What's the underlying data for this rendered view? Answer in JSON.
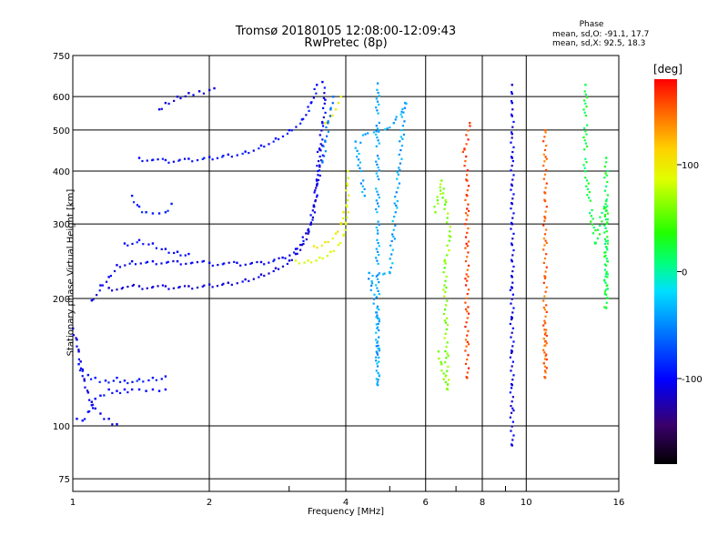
{
  "chart_data": {
    "type": "scatter",
    "title": "Tromsø 20180105 12:08:00-12:09:43",
    "subtitle": "RwPretec (8p)",
    "xlabel": "Frequency [MHz]",
    "ylabel": "Stationary phase Virtual Height [km]",
    "x_scale": "log",
    "y_scale": "log",
    "xlim": [
      1,
      16
    ],
    "ylim": [
      70,
      750
    ],
    "x_ticks": [
      1,
      2,
      4,
      6,
      8,
      10,
      16
    ],
    "y_ticks": [
      75,
      100,
      200,
      300,
      400,
      500,
      600,
      750
    ],
    "grid": true,
    "phase_stats": {
      "title": "Phase",
      "o_mode": "mean, sd,O: -91.1, 17.7",
      "x_mode": "mean, sd,X:  92.5, 18.3"
    },
    "colorbar": {
      "unit": "[deg]",
      "range": [
        -180,
        180
      ],
      "ticks": [
        "100",
        "0",
        "-100"
      ],
      "tick_values": [
        100,
        0,
        -100
      ]
    },
    "series": [
      {
        "traces": [
          {
            "points": [
              [
                1.02,
                104
              ],
              [
                1.05,
                103
              ],
              [
                1.08,
                108
              ],
              [
                1.1,
                112
              ],
              [
                1.12,
                116
              ],
              [
                1.15,
                118
              ],
              [
                1.2,
                122
              ],
              [
                1.25,
                121
              ],
              [
                1.3,
                122
              ],
              [
                1.35,
                122
              ],
              [
                1.4,
                122
              ],
              [
                1.45,
                121
              ],
              [
                1.5,
                122
              ],
              [
                1.55,
                121
              ],
              [
                1.6,
                122
              ]
            ],
            "phase": -100
          },
          {
            "points": [
              [
                1.03,
                140
              ],
              [
                1.05,
                135
              ],
              [
                1.08,
                132
              ],
              [
                1.12,
                130
              ],
              [
                1.18,
                128
              ],
              [
                1.25,
                130
              ],
              [
                1.3,
                128
              ],
              [
                1.4,
                129
              ],
              [
                1.5,
                130
              ],
              [
                1.6,
                131
              ]
            ],
            "phase": -95
          },
          {
            "points": [
              [
                1.0,
                170
              ],
              [
                1.02,
                160
              ],
              [
                1.03,
                150
              ],
              [
                1.04,
                142
              ],
              [
                1.05,
                136
              ],
              [
                1.06,
                128
              ],
              [
                1.08,
                120
              ],
              [
                1.1,
                114
              ],
              [
                1.12,
                110
              ],
              [
                1.15,
                107
              ],
              [
                1.2,
                104
              ],
              [
                1.25,
                101
              ]
            ],
            "phase": -110
          },
          {
            "points": [
              [
                1.1,
                198
              ],
              [
                1.15,
                215
              ],
              [
                1.2,
                225
              ],
              [
                1.25,
                240
              ],
              [
                1.35,
                245
              ],
              [
                1.5,
                245
              ],
              [
                1.7,
                245
              ],
              [
                2.0,
                243
              ],
              [
                2.3,
                243
              ],
              [
                2.6,
                244
              ],
              [
                2.9,
                250
              ],
              [
                3.1,
                262
              ],
              [
                3.3,
                290
              ],
              [
                3.4,
                330
              ],
              [
                3.45,
                380
              ],
              [
                3.5,
                450
              ],
              [
                3.55,
                520
              ],
              [
                3.6,
                590
              ],
              [
                3.55,
                650
              ]
            ],
            "phase": -105
          },
          {
            "points": [
              [
                1.2,
                212
              ],
              [
                1.4,
                214
              ],
              [
                1.6,
                214
              ],
              [
                1.8,
                214
              ],
              [
                2.0,
                216
              ],
              [
                2.2,
                218
              ],
              [
                2.4,
                222
              ],
              [
                2.6,
                228
              ],
              [
                2.8,
                236
              ],
              [
                3.0,
                246
              ],
              [
                3.1,
                255
              ],
              [
                3.2,
                268
              ],
              [
                3.3,
                285
              ],
              [
                3.35,
                300
              ],
              [
                3.4,
                330
              ],
              [
                3.45,
                370
              ],
              [
                3.5,
                410
              ],
              [
                3.55,
                460
              ]
            ],
            "phase": -115
          },
          {
            "points": [
              [
                1.4,
                430
              ],
              [
                1.6,
                425
              ],
              [
                1.8,
                428
              ],
              [
                2.0,
                432
              ],
              [
                2.2,
                438
              ],
              [
                2.4,
                445
              ],
              [
                2.6,
                460
              ],
              [
                2.8,
                478
              ],
              [
                3.0,
                500
              ],
              [
                3.2,
                530
              ],
              [
                3.35,
                580
              ],
              [
                3.45,
                640
              ]
            ],
            "phase": -100
          },
          {
            "points": [
              [
                1.35,
                350
              ],
              [
                1.4,
                330
              ],
              [
                1.45,
                320
              ],
              [
                1.5,
                318
              ],
              [
                1.55,
                318
              ],
              [
                1.6,
                320
              ],
              [
                1.65,
                335
              ]
            ],
            "phase": -90
          },
          {
            "points": [
              [
                1.3,
                270
              ],
              [
                1.4,
                275
              ],
              [
                1.5,
                270
              ],
              [
                1.6,
                262
              ],
              [
                1.7,
                258
              ],
              [
                1.8,
                255
              ]
            ],
            "phase": -100
          },
          {
            "points": [
              [
                1.55,
                560
              ],
              [
                1.6,
                580
              ],
              [
                1.7,
                600
              ],
              [
                1.8,
                612
              ],
              [
                1.9,
                618
              ],
              [
                2.0,
                622
              ],
              [
                2.05,
                628
              ]
            ],
            "phase": -110
          },
          {
            "points": [
              [
                3.1,
                246
              ],
              [
                3.3,
                246
              ],
              [
                3.5,
                250
              ],
              [
                3.7,
                258
              ],
              [
                3.85,
                268
              ],
              [
                3.95,
                282
              ],
              [
                4.0,
                300
              ],
              [
                4.02,
                330
              ],
              [
                4.03,
                370
              ],
              [
                4.04,
                400
              ]
            ],
            "phase": 85
          },
          {
            "points": [
              [
                3.4,
                266
              ],
              [
                3.6,
                272
              ],
              [
                3.8,
                285
              ],
              [
                3.9,
                300
              ],
              [
                3.95,
                320
              ]
            ],
            "phase": 100
          },
          {
            "points": [
              [
                3.6,
                520
              ],
              [
                3.7,
                540
              ],
              [
                3.8,
                560
              ],
              [
                3.85,
                580
              ],
              [
                3.9,
                600
              ]
            ],
            "phase": 95
          },
          {
            "points": [
              [
                3.55,
                420
              ],
              [
                3.6,
                470
              ],
              [
                3.65,
                520
              ],
              [
                3.7,
                560
              ],
              [
                3.75,
                600
              ]
            ],
            "phase": -60
          },
          {
            "points": [
              [
                9.3,
                90
              ],
              [
                9.3,
                125
              ],
              [
                9.3,
                150
              ],
              [
                9.3,
                180
              ],
              [
                9.3,
                212
              ],
              [
                9.3,
                225
              ],
              [
                9.3,
                245
              ],
              [
                9.3,
                268
              ],
              [
                9.3,
                300
              ],
              [
                9.3,
                335
              ],
              [
                9.3,
                370
              ],
              [
                9.3,
                430
              ],
              [
                9.3,
                490
              ],
              [
                9.3,
                540
              ],
              [
                9.3,
                580
              ],
              [
                9.3,
                610
              ],
              [
                9.3,
                640
              ]
            ],
            "phase": -110
          },
          {
            "points": [
              [
                11,
                175
              ],
              [
                11,
                155
              ],
              [
                11,
                135
              ],
              [
                11,
                130
              ],
              [
                11,
                225
              ],
              [
                11,
                310
              ],
              [
                11,
                340
              ],
              [
                11,
                355
              ],
              [
                11,
                500
              ]
            ],
            "phase": 150
          },
          {
            "points": [
              [
                6.4,
                150
              ],
              [
                6.5,
                140
              ],
              [
                6.7,
                122
              ],
              [
                6.6,
                245
              ],
              [
                6.8,
                280
              ],
              [
                6.5,
                380
              ],
              [
                6.3,
                320
              ]
            ],
            "phase": 60
          },
          {
            "points": [
              [
                7.4,
                130
              ],
              [
                7.4,
                350
              ],
              [
                7.4,
                380
              ],
              [
                7.3,
                450
              ],
              [
                7.5,
                520
              ]
            ],
            "phase": 160
          },
          {
            "points": [
              [
                13.5,
                640
              ],
              [
                13.5,
                400
              ],
              [
                14.2,
                270
              ],
              [
                15,
                340
              ],
              [
                15,
                190
              ],
              [
                15,
                430
              ]
            ],
            "phase": 20
          },
          {
            "points": [
              [
                4.7,
                645
              ],
              [
                4.7,
                285
              ],
              [
                4.7,
                125
              ],
              [
                4.7,
                180
              ],
              [
                4.5,
                230
              ],
              [
                5.0,
                230
              ],
              [
                5.4,
                580
              ],
              [
                5.1,
                520
              ],
              [
                4.2,
                470
              ],
              [
                4.4,
                350
              ]
            ],
            "phase": -40
          }
        ]
      }
    ]
  },
  "chart_bounds_note": ""
}
